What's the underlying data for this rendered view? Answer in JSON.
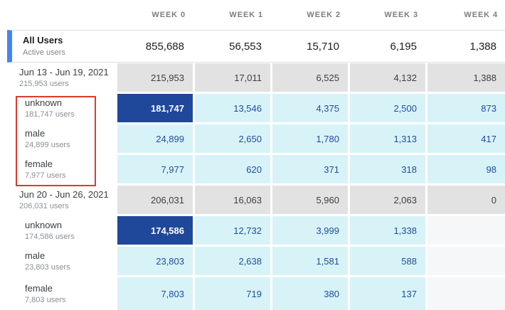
{
  "colors": {
    "accent_bar_blue": "#4285f4",
    "cell_gray": "#e2e2e2",
    "cell_cyan": "#d8f3f8",
    "cell_dark_blue": "#20489a",
    "cell_empty": "#f5f7f8",
    "cyan_cell_text": "#1f4c9c",
    "annotation_red": "#dc3a2d"
  },
  "header": {
    "columns": [
      "WEEK 0",
      "WEEK 1",
      "WEEK 2",
      "WEEK 3",
      "WEEK 4"
    ]
  },
  "summary": {
    "title": "All Users",
    "subtitle": "Active users",
    "values": [
      "855,688",
      "56,553",
      "15,710",
      "6,195",
      "1,388"
    ]
  },
  "rows": [
    {
      "label": "Jun 13 - Jun 19, 2021",
      "sublabel": "215,953 users",
      "indent": false,
      "values": [
        "215,953",
        "17,011",
        "6,525",
        "4,132",
        "1,388"
      ],
      "styles": [
        "gray",
        "gray",
        "gray",
        "gray",
        "gray"
      ]
    },
    {
      "label": "unknown",
      "sublabel": "181,747 users",
      "indent": true,
      "values": [
        "181,747",
        "13,546",
        "4,375",
        "2,500",
        "873"
      ],
      "styles": [
        "dark",
        "cyan",
        "cyan",
        "cyan",
        "cyan"
      ]
    },
    {
      "label": "male",
      "sublabel": "24,899 users",
      "indent": true,
      "values": [
        "24,899",
        "2,650",
        "1,780",
        "1,313",
        "417"
      ],
      "styles": [
        "cyan",
        "cyan",
        "cyan",
        "cyan",
        "cyan"
      ]
    },
    {
      "label": "female",
      "sublabel": "7,977 users",
      "indent": true,
      "values": [
        "7,977",
        "620",
        "371",
        "318",
        "98"
      ],
      "styles": [
        "cyan",
        "cyan",
        "cyan",
        "cyan",
        "cyan"
      ]
    },
    {
      "label": "Jun 20 - Jun 26, 2021",
      "sublabel": "206,031 users",
      "indent": false,
      "values": [
        "206,031",
        "16,063",
        "5,960",
        "2,063",
        "0"
      ],
      "styles": [
        "gray",
        "gray",
        "gray",
        "gray",
        "gray"
      ]
    },
    {
      "label": "unknown",
      "sublabel": "174,586 users",
      "indent": true,
      "values": [
        "174,586",
        "12,732",
        "3,999",
        "1,338",
        ""
      ],
      "styles": [
        "dark",
        "cyan",
        "cyan",
        "cyan",
        "empty"
      ]
    },
    {
      "label": "male",
      "sublabel": "23,803 users",
      "indent": true,
      "values": [
        "23,803",
        "2,638",
        "1,581",
        "588",
        ""
      ],
      "styles": [
        "cyan",
        "cyan",
        "cyan",
        "cyan",
        "empty"
      ]
    },
    {
      "label": "female",
      "sublabel": "7,803 users",
      "indent": true,
      "values": [
        "7,803",
        "719",
        "380",
        "137",
        ""
      ],
      "styles": [
        "cyan",
        "cyan",
        "cyan",
        "cyan",
        "empty"
      ]
    }
  ],
  "annotation": {
    "description": "red highlight rectangle around first cohort gender segment labels"
  }
}
